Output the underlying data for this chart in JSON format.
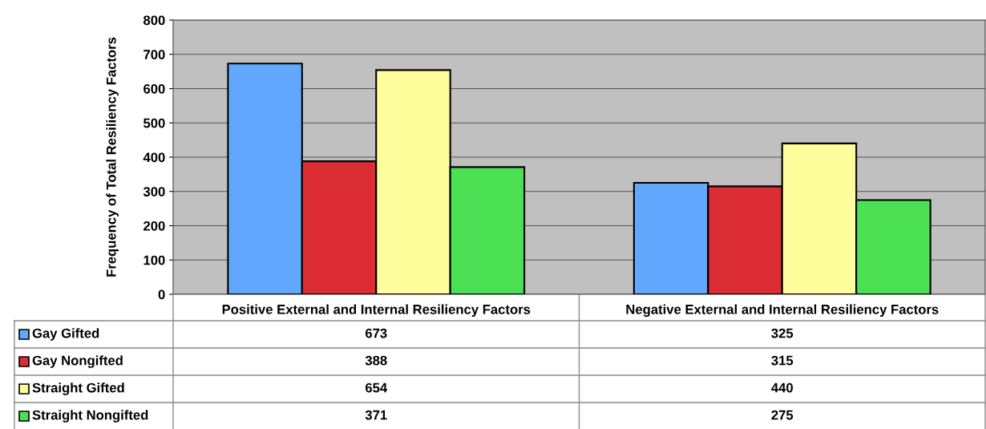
{
  "chart_data": {
    "type": "bar",
    "ylabel": "Frequency of Total Resiliency Factors",
    "categories": [
      "Positive External and Internal Resiliency Factors",
      "Negative External and Internal Resiliency Factors"
    ],
    "series": [
      {
        "name": "Gay Gifted",
        "color": "#62a8fe",
        "values": [
          673,
          325
        ]
      },
      {
        "name": "Gay Nongifted",
        "color": "#dc2c34",
        "values": [
          388,
          315
        ]
      },
      {
        "name": "Straight Gifted",
        "color": "#fefe9c",
        "values": [
          654,
          440
        ]
      },
      {
        "name": "Straight Nongifted",
        "color": "#4ce155",
        "values": [
          371,
          275
        ]
      }
    ],
    "ylim": [
      0,
      800
    ],
    "yticks": [
      0,
      100,
      200,
      300,
      400,
      500,
      600,
      700,
      800
    ],
    "grid": "y",
    "legend": "bottom",
    "data_labels": true
  }
}
